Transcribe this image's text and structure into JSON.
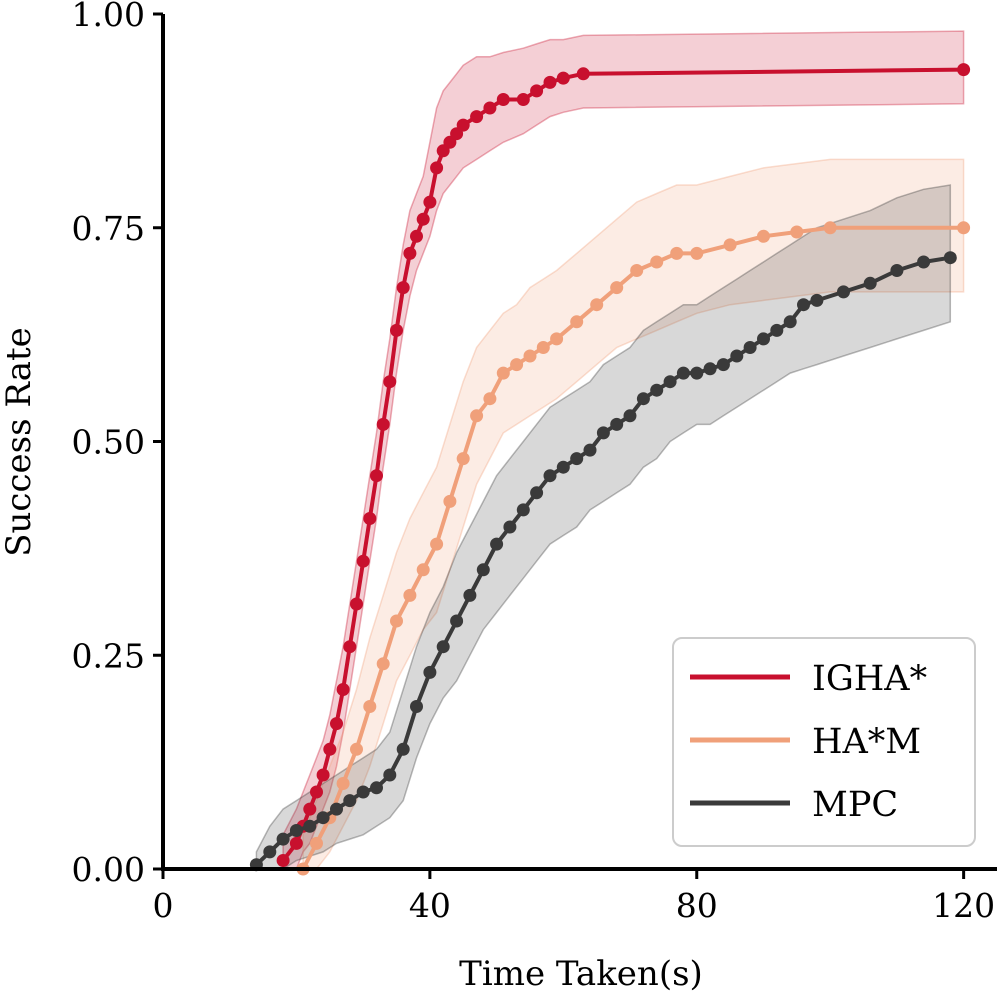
{
  "chart_data": {
    "type": "line",
    "title": "",
    "xlabel": "Time Taken(s)",
    "ylabel": "Success Rate",
    "xlim": [
      0,
      125
    ],
    "ylim": [
      0,
      1.0
    ],
    "xticks": [
      0,
      40,
      80,
      120
    ],
    "xtick_labels": [
      "0",
      "40",
      "80",
      "120"
    ],
    "yticks": [
      0.0,
      0.25,
      0.5,
      0.75,
      1.0
    ],
    "ytick_labels": [
      "0.00",
      "0.25",
      "0.50",
      "0.75",
      "1.00"
    ],
    "grid": false,
    "legend_position": "bottom-right",
    "series": [
      {
        "name": "IGHA*",
        "color": "#c8102e",
        "x": [
          18,
          20,
          21,
          22,
          23,
          24,
          25,
          26,
          27,
          28,
          29,
          30,
          31,
          32,
          33,
          34,
          35,
          36,
          37,
          38,
          39,
          40,
          41,
          42,
          43,
          44,
          45,
          47,
          49,
          51,
          54,
          56,
          58,
          60,
          63,
          120
        ],
        "y": [
          0.01,
          0.03,
          0.05,
          0.07,
          0.09,
          0.11,
          0.14,
          0.17,
          0.21,
          0.26,
          0.31,
          0.36,
          0.41,
          0.46,
          0.52,
          0.57,
          0.63,
          0.68,
          0.72,
          0.74,
          0.76,
          0.78,
          0.82,
          0.84,
          0.85,
          0.86,
          0.87,
          0.88,
          0.89,
          0.9,
          0.9,
          0.91,
          0.92,
          0.925,
          0.93,
          0.935
        ],
        "lower": [
          0.0,
          0.0,
          0.02,
          0.03,
          0.05,
          0.07,
          0.09,
          0.12,
          0.16,
          0.21,
          0.26,
          0.31,
          0.36,
          0.41,
          0.47,
          0.52,
          0.58,
          0.63,
          0.67,
          0.7,
          0.72,
          0.74,
          0.77,
          0.79,
          0.8,
          0.81,
          0.82,
          0.83,
          0.84,
          0.85,
          0.86,
          0.87,
          0.88,
          0.885,
          0.89,
          0.895
        ],
        "upper": [
          0.04,
          0.07,
          0.09,
          0.11,
          0.13,
          0.15,
          0.18,
          0.22,
          0.26,
          0.31,
          0.36,
          0.41,
          0.46,
          0.51,
          0.57,
          0.62,
          0.68,
          0.73,
          0.77,
          0.79,
          0.81,
          0.85,
          0.89,
          0.91,
          0.92,
          0.93,
          0.94,
          0.95,
          0.95,
          0.955,
          0.96,
          0.965,
          0.97,
          0.97,
          0.975,
          0.98
        ]
      },
      {
        "name": "HA*M",
        "color": "#f0a07a",
        "x": [
          21,
          23,
          25,
          27,
          29,
          31,
          33,
          35,
          37,
          39,
          41,
          43,
          45,
          47,
          49,
          51,
          53,
          55,
          57,
          59,
          62,
          65,
          68,
          71,
          74,
          77,
          80,
          85,
          90,
          95,
          100,
          120
        ],
        "y": [
          0.0,
          0.03,
          0.06,
          0.1,
          0.14,
          0.19,
          0.24,
          0.29,
          0.32,
          0.35,
          0.38,
          0.43,
          0.48,
          0.53,
          0.55,
          0.58,
          0.59,
          0.6,
          0.61,
          0.62,
          0.64,
          0.66,
          0.68,
          0.7,
          0.71,
          0.72,
          0.72,
          0.73,
          0.74,
          0.745,
          0.75,
          0.75
        ],
        "lower": [
          0.0,
          0.0,
          0.02,
          0.05,
          0.08,
          0.12,
          0.17,
          0.22,
          0.25,
          0.28,
          0.3,
          0.35,
          0.4,
          0.45,
          0.48,
          0.51,
          0.52,
          0.53,
          0.54,
          0.55,
          0.57,
          0.59,
          0.61,
          0.62,
          0.63,
          0.64,
          0.65,
          0.66,
          0.665,
          0.67,
          0.675,
          0.675
        ],
        "upper": [
          0.04,
          0.08,
          0.12,
          0.16,
          0.21,
          0.27,
          0.32,
          0.37,
          0.41,
          0.44,
          0.47,
          0.52,
          0.57,
          0.61,
          0.63,
          0.65,
          0.66,
          0.68,
          0.69,
          0.7,
          0.72,
          0.74,
          0.76,
          0.78,
          0.79,
          0.8,
          0.8,
          0.81,
          0.82,
          0.825,
          0.83,
          0.83
        ]
      },
      {
        "name": "MPC",
        "color": "#3a3a3a",
        "x": [
          14,
          16,
          18,
          20,
          22,
          24,
          26,
          28,
          30,
          32,
          34,
          36,
          38,
          40,
          42,
          44,
          46,
          48,
          50,
          52,
          54,
          56,
          58,
          60,
          62,
          64,
          66,
          68,
          70,
          72,
          74,
          76,
          78,
          80,
          82,
          84,
          86,
          88,
          90,
          92,
          94,
          96,
          98,
          102,
          106,
          110,
          114,
          118
        ],
        "y": [
          0.005,
          0.02,
          0.035,
          0.045,
          0.05,
          0.06,
          0.07,
          0.08,
          0.09,
          0.095,
          0.11,
          0.14,
          0.19,
          0.23,
          0.26,
          0.29,
          0.32,
          0.35,
          0.38,
          0.4,
          0.42,
          0.44,
          0.46,
          0.47,
          0.48,
          0.49,
          0.51,
          0.52,
          0.53,
          0.55,
          0.56,
          0.57,
          0.58,
          0.58,
          0.585,
          0.59,
          0.6,
          0.61,
          0.62,
          0.63,
          0.64,
          0.66,
          0.665,
          0.675,
          0.685,
          0.7,
          0.71,
          0.715
        ],
        "lower": [
          0.0,
          0.0,
          0.0,
          0.01,
          0.015,
          0.02,
          0.03,
          0.035,
          0.04,
          0.05,
          0.06,
          0.08,
          0.13,
          0.17,
          0.2,
          0.22,
          0.25,
          0.28,
          0.3,
          0.32,
          0.34,
          0.36,
          0.38,
          0.39,
          0.4,
          0.42,
          0.43,
          0.44,
          0.45,
          0.47,
          0.48,
          0.5,
          0.51,
          0.52,
          0.52,
          0.53,
          0.54,
          0.55,
          0.56,
          0.57,
          0.58,
          0.585,
          0.59,
          0.6,
          0.61,
          0.62,
          0.63,
          0.64
        ],
        "upper": [
          0.02,
          0.05,
          0.07,
          0.08,
          0.09,
          0.1,
          0.11,
          0.12,
          0.13,
          0.14,
          0.16,
          0.21,
          0.26,
          0.3,
          0.33,
          0.37,
          0.4,
          0.43,
          0.46,
          0.48,
          0.5,
          0.52,
          0.54,
          0.55,
          0.56,
          0.57,
          0.59,
          0.6,
          0.61,
          0.63,
          0.64,
          0.65,
          0.66,
          0.66,
          0.67,
          0.68,
          0.69,
          0.7,
          0.71,
          0.72,
          0.73,
          0.74,
          0.75,
          0.76,
          0.77,
          0.785,
          0.795,
          0.8
        ]
      }
    ]
  }
}
